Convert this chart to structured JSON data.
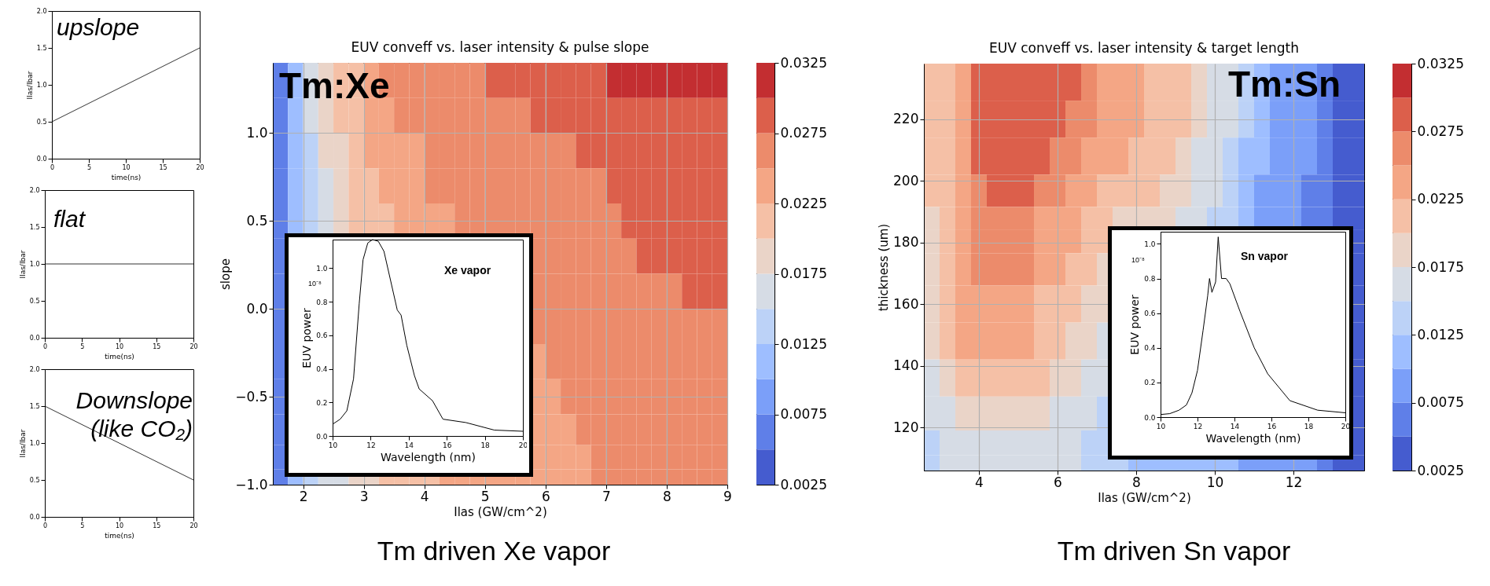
{
  "chart_data": [
    {
      "type": "line",
      "x": [
        0,
        20
      ],
      "series": [
        {
          "color": "#333333",
          "values": [
            0.5,
            1.5
          ]
        }
      ],
      "xlim": [
        0,
        20
      ],
      "ylim": [
        0,
        2
      ],
      "xticks": [
        0,
        5,
        10,
        15,
        20
      ],
      "yticks": [
        {
          "value": 0,
          "label": "0.0"
        },
        {
          "value": 0.5,
          "label": "0.5"
        },
        {
          "value": 1,
          "label": "1.0"
        },
        {
          "value": 1.5,
          "label": "1.5"
        },
        {
          "value": 2,
          "label": "2.0"
        }
      ],
      "xlabel": "time(ns)",
      "ylabel": "Ilas/Ibar",
      "annotations": [
        "upslope"
      ]
    },
    {
      "type": "line",
      "x": [
        0,
        20
      ],
      "series": [
        {
          "color": "#333333",
          "values": [
            1,
            1
          ]
        }
      ],
      "xlim": [
        0,
        20
      ],
      "ylim": [
        0,
        2
      ],
      "xticks": [
        0,
        5,
        10,
        15,
        20
      ],
      "yticks": [
        {
          "value": 0,
          "label": "0.0"
        },
        {
          "value": 0.5,
          "label": "0.5"
        },
        {
          "value": 1,
          "label": "1.0"
        },
        {
          "value": 1.5,
          "label": "1.5"
        },
        {
          "value": 2,
          "label": "2.0"
        }
      ],
      "xlabel": "time(ns)",
      "ylabel": "Ilas/Ibar",
      "annotations": [
        "flat"
      ]
    },
    {
      "type": "line",
      "x": [
        0,
        20
      ],
      "series": [
        {
          "color": "#333333",
          "values": [
            1.5,
            0.5
          ]
        }
      ],
      "xlim": [
        0,
        20
      ],
      "ylim": [
        0,
        2
      ],
      "xticks": [
        0,
        5,
        10,
        15,
        20
      ],
      "yticks": [
        {
          "value": 0,
          "label": "0.0"
        },
        {
          "value": 0.5,
          "label": "0.5"
        },
        {
          "value": 1,
          "label": "1.0"
        },
        {
          "value": 1.5,
          "label": "1.5"
        },
        {
          "value": 2,
          "label": "2.0"
        }
      ],
      "xlabel": "time(ns)",
      "ylabel": "Ilas/Ibar",
      "annotations": [
        "Downslope (like CO₂)"
      ]
    },
    {
      "type": "heatmap",
      "title": "EUV conveff vs. laser intensity & pulse slope",
      "xlabel": "Ilas (GW/cm^2)",
      "ylabel": "slope",
      "x": [
        1.625,
        1.875,
        2.125,
        2.375,
        2.625,
        2.875,
        3.125,
        3.375,
        3.625,
        3.875,
        4.125,
        4.375,
        4.625,
        4.875,
        5.125,
        5.375,
        5.625,
        5.875,
        6.125,
        6.375,
        6.625,
        6.875,
        7.125,
        7.375,
        7.625,
        7.875,
        8.125,
        8.375,
        8.625,
        8.875
      ],
      "y": [
        1.3,
        1.1,
        0.9,
        0.7,
        0.5,
        0.3,
        0.1,
        -0.1,
        -0.3,
        -0.5,
        -0.7,
        -0.85,
        -0.975
      ],
      "cells": [
        [
          0.00625,
          0.01125,
          0.01625,
          0.01875,
          0.02125,
          0.02125,
          0.02375,
          0.02625,
          0.02625,
          0.02625,
          0.02625,
          0.02625,
          0.02625,
          0.02625,
          0.02875,
          0.02875,
          0.02875,
          0.02875,
          0.02875,
          0.02875,
          0.02875,
          0.02875,
          0.03125,
          0.03125,
          0.03125,
          0.03125,
          0.03125,
          0.03125,
          0.03125,
          0.03125
        ],
        [
          0.00625,
          0.01125,
          0.01625,
          0.01875,
          0.02125,
          0.02125,
          0.02375,
          0.02375,
          0.02625,
          0.02625,
          0.02625,
          0.02625,
          0.02625,
          0.02625,
          0.02625,
          0.02625,
          0.02625,
          0.02875,
          0.02875,
          0.02875,
          0.02875,
          0.02875,
          0.02875,
          0.02875,
          0.02875,
          0.02875,
          0.02875,
          0.02875,
          0.02875,
          0.02875
        ],
        [
          0.00625,
          0.01125,
          0.01375,
          0.01875,
          0.01875,
          0.02125,
          0.02375,
          0.02375,
          0.02375,
          0.02375,
          0.02625,
          0.02625,
          0.02625,
          0.02625,
          0.02625,
          0.02625,
          0.02625,
          0.02625,
          0.02625,
          0.02625,
          0.02875,
          0.02875,
          0.02875,
          0.02875,
          0.02875,
          0.02875,
          0.02875,
          0.02875,
          0.02875,
          0.02875
        ],
        [
          0.00625,
          0.01125,
          0.01375,
          0.01625,
          0.01875,
          0.02125,
          0.02125,
          0.02375,
          0.02375,
          0.02375,
          0.02625,
          0.02625,
          0.02625,
          0.02625,
          0.02625,
          0.02625,
          0.02625,
          0.02625,
          0.02625,
          0.02625,
          0.02625,
          0.02625,
          0.02875,
          0.02875,
          0.02875,
          0.02875,
          0.02875,
          0.02875,
          0.02875,
          0.02875
        ],
        [
          0.00625,
          0.01125,
          0.01375,
          0.01625,
          0.01875,
          0.02125,
          0.02125,
          0.02125,
          0.02375,
          0.02375,
          0.02375,
          0.02375,
          0.02625,
          0.02625,
          0.02625,
          0.02625,
          0.02625,
          0.02625,
          0.02625,
          0.02625,
          0.02625,
          0.02625,
          0.02625,
          0.02875,
          0.02875,
          0.02875,
          0.02875,
          0.02875,
          0.02875,
          0.02875
        ],
        [
          0.00625,
          null,
          null,
          null,
          null,
          null,
          null,
          null,
          null,
          null,
          null,
          null,
          null,
          null,
          null,
          null,
          null,
          0.02625,
          0.02625,
          0.02625,
          0.02625,
          0.02625,
          0.02625,
          0.02625,
          0.02875,
          0.02875,
          0.02875,
          0.02875,
          0.02875,
          0.02875
        ],
        [
          0.00625,
          null,
          null,
          null,
          null,
          null,
          null,
          null,
          null,
          null,
          null,
          null,
          null,
          null,
          null,
          null,
          null,
          0.02625,
          0.02625,
          0.02625,
          0.02625,
          0.02625,
          0.02625,
          0.02625,
          0.02625,
          0.02625,
          0.02625,
          0.02875,
          0.02875,
          0.02875
        ],
        [
          0.00625,
          null,
          null,
          null,
          null,
          null,
          null,
          null,
          null,
          null,
          null,
          null,
          null,
          null,
          null,
          null,
          null,
          0.02625,
          0.02625,
          0.02625,
          0.02625,
          0.02625,
          0.02625,
          0.02625,
          0.02625,
          0.02625,
          0.02625,
          0.02625,
          0.02625,
          0.02625
        ],
        [
          0.00625,
          null,
          null,
          null,
          null,
          null,
          null,
          null,
          null,
          null,
          null,
          null,
          null,
          null,
          null,
          null,
          null,
          0.02375,
          0.02625,
          0.02625,
          0.02625,
          0.02625,
          0.02625,
          0.02625,
          0.02625,
          0.02625,
          0.02625,
          0.02625,
          0.02625,
          0.02625
        ],
        [
          0.00625,
          null,
          null,
          null,
          null,
          null,
          null,
          null,
          null,
          null,
          null,
          null,
          null,
          null,
          null,
          null,
          null,
          0.02375,
          0.02375,
          0.02625,
          0.02625,
          0.02625,
          0.02625,
          0.02625,
          0.02625,
          0.02625,
          0.02625,
          0.02625,
          0.02625,
          0.02625
        ],
        [
          0.00625,
          null,
          null,
          null,
          null,
          null,
          null,
          null,
          null,
          null,
          null,
          null,
          null,
          null,
          null,
          null,
          null,
          0.02375,
          0.02375,
          0.02375,
          0.02625,
          0.02625,
          0.02625,
          0.02625,
          0.02625,
          0.02625,
          0.02625,
          0.02625,
          0.02625,
          0.02625
        ],
        [
          0.00625,
          null,
          null,
          null,
          null,
          null,
          null,
          null,
          null,
          null,
          null,
          null,
          null,
          null,
          null,
          null,
          null,
          0.02375,
          0.02375,
          0.02375,
          0.02375,
          0.02625,
          0.02625,
          0.02625,
          0.02625,
          0.02625,
          0.02625,
          0.02625,
          0.02625,
          0.02625
        ],
        [
          0.00625,
          0.01125,
          0.01375,
          0.01625,
          0.01625,
          0.01875,
          0.01875,
          0.02125,
          0.02125,
          0.02125,
          0.02125,
          0.02375,
          0.02375,
          0.02375,
          0.02375,
          0.02375,
          0.02375,
          0.02375,
          0.02375,
          0.02375,
          0.02375,
          0.02625,
          0.02625,
          0.02625,
          0.02625,
          0.02625,
          0.02625,
          0.02625,
          0.02625,
          0.02625
        ]
      ],
      "colors": [
        "#455ccf",
        "#5f7fe8",
        "#7b9ff9",
        "#9ebeff",
        "#bcd2f7",
        "#d6dce5",
        "#ead4c8",
        "#f5c0a6",
        "#f4a685",
        "#ec8b6b",
        "#dc5f4b",
        "#c32e31"
      ],
      "clim": [
        0.0025,
        0.0325
      ],
      "cticks": [
        0.0025,
        0.0075,
        0.0125,
        0.0175,
        0.0225,
        0.0275,
        0.0325
      ],
      "xlim": [
        1.5,
        9
      ],
      "ylim": [
        -1,
        1.4
      ],
      "xticks": [
        2,
        3,
        4,
        5,
        6,
        7,
        8,
        9
      ],
      "yticks": [
        {
          "value": -1,
          "label": "−1.0"
        },
        {
          "value": -0.5,
          "label": "−0.5"
        },
        {
          "value": 0,
          "label": "0.0"
        },
        {
          "value": 0.5,
          "label": "0.5"
        },
        {
          "value": 1,
          "label": "1.0"
        }
      ],
      "grid": true,
      "annotations": [
        "Tm:Xe",
        "Tm driven Xe vapor"
      ]
    },
    {
      "type": "line",
      "x": [
        10,
        10.4,
        10.75,
        11.1,
        11.4,
        11.6,
        11.85,
        12.1,
        12.4,
        12.7,
        13.0,
        13.4,
        13.6,
        13.9,
        14.3,
        14.55,
        15.25,
        15.8,
        17,
        18.5,
        20
      ],
      "series": [
        {
          "color": "#000000",
          "values": [
            0.07,
            0.1,
            0.15,
            0.34,
            0.79,
            1.05,
            1.15,
            1.17,
            1.16,
            1.1,
            0.95,
            0.75,
            0.72,
            0.54,
            0.36,
            0.28,
            0.21,
            0.1,
            0.08,
            0.035,
            0.028
          ]
        }
      ],
      "xlim": [
        10,
        20
      ],
      "ylim": [
        0,
        1.17
      ],
      "xticks": [
        10,
        12,
        14,
        16,
        18,
        20
      ],
      "yticks": [
        {
          "value": 0,
          "label": "0.0"
        },
        {
          "value": 0.2,
          "label": "0.2"
        },
        {
          "value": 0.4,
          "label": "0.4"
        },
        {
          "value": 0.6,
          "label": "0.6"
        },
        {
          "value": 0.8,
          "label": "0.8"
        },
        {
          "value": 1,
          "label": "1.0"
        }
      ],
      "xlabel": "Wavelength (nm)",
      "ylabel": "EUV power",
      "annotations": [
        "Xe vapor",
        "10⁻⁸"
      ]
    },
    {
      "type": "heatmap",
      "title": "EUV conveff vs. laser intensity & target length",
      "xlabel": "Ilas (GW/cm^2)",
      "ylabel": "thickness (um)",
      "x": [
        2.8,
        3.2,
        3.6,
        4.0,
        4.4,
        4.8,
        5.2,
        5.6,
        6.0,
        6.4,
        6.8,
        7.2,
        7.6,
        8.0,
        8.4,
        8.8,
        9.2,
        9.6,
        10.0,
        10.4,
        10.8,
        11.2,
        11.6,
        12.0,
        12.4,
        12.8,
        13.2,
        13.6
      ],
      "y": [
        232,
        220,
        208,
        196,
        187,
        181,
        172,
        160,
        148,
        136,
        124,
        114,
        108
      ],
      "cells": [
        [
          0.02125,
          0.02125,
          0.02375,
          0.02875,
          0.02875,
          0.02875,
          0.02875,
          0.02875,
          0.02875,
          0.02875,
          0.02625,
          0.02375,
          0.02375,
          0.02375,
          0.02125,
          0.02125,
          0.02125,
          0.01875,
          0.01625,
          0.01625,
          0.01375,
          0.01125,
          0.00875,
          0.00875,
          0.00875,
          0.00625,
          0.00375,
          0.00375
        ],
        [
          0.02125,
          0.02125,
          0.02375,
          0.02875,
          0.02875,
          0.02875,
          0.02875,
          0.02875,
          0.02875,
          0.02625,
          0.02625,
          0.02375,
          0.02375,
          0.02375,
          0.02125,
          0.02125,
          0.02125,
          0.01875,
          0.01625,
          0.01625,
          0.01375,
          0.01125,
          0.00875,
          0.00875,
          0.00875,
          0.00625,
          0.00375,
          0.00375
        ],
        [
          0.02125,
          0.02125,
          0.02375,
          0.02875,
          0.02875,
          0.02875,
          0.02875,
          0.02875,
          0.02625,
          0.02625,
          0.02375,
          0.02375,
          0.02375,
          0.02125,
          0.02125,
          0.02125,
          0.01875,
          0.01625,
          0.01625,
          0.01375,
          0.01125,
          0.01125,
          0.00875,
          0.00875,
          0.00875,
          0.00625,
          0.00375,
          0.00375
        ],
        [
          0.02125,
          0.02125,
          0.02375,
          0.02625,
          0.02875,
          0.02875,
          0.02875,
          0.02625,
          0.02625,
          0.02375,
          0.02375,
          0.02125,
          0.02125,
          0.02125,
          0.02125,
          0.01875,
          0.01875,
          0.01625,
          0.01625,
          0.01375,
          0.01125,
          0.00875,
          0.00875,
          0.00875,
          0.00625,
          0.00625,
          0.00375,
          0.00375
        ],
        [
          0.01875,
          0.02125,
          0.02375,
          0.02625,
          0.02625,
          0.02625,
          0.02625,
          0.02375,
          0.02375,
          0.02375,
          0.02125,
          0.02125,
          0.01875,
          0.01875,
          0.01875,
          0.01875,
          0.01625,
          0.01625,
          0.01375,
          0.01375,
          0.01125,
          0.00875,
          0.00875,
          0.00875,
          0.00625,
          0.00625,
          0.00375,
          0.00375
        ],
        [
          0.01875,
          0.02125,
          0.02375,
          0.02625,
          0.02625,
          0.02625,
          0.02625,
          0.02375,
          0.02375,
          0.02375,
          0.02125,
          0.02125,
          null,
          null,
          null,
          null,
          null,
          null,
          null,
          null,
          null,
          null,
          null,
          null,
          null,
          null,
          null,
          0.00375
        ],
        [
          0.01875,
          0.02125,
          0.02375,
          0.02625,
          0.02625,
          0.02625,
          0.02625,
          0.02375,
          0.02375,
          0.02125,
          0.02125,
          0.01875,
          null,
          null,
          null,
          null,
          null,
          null,
          null,
          null,
          null,
          null,
          null,
          null,
          null,
          null,
          null,
          0.00375
        ],
        [
          0.01875,
          0.02125,
          0.02375,
          0.02375,
          0.02375,
          0.02375,
          0.02375,
          0.02125,
          0.02125,
          0.02125,
          0.01875,
          0.01875,
          null,
          null,
          null,
          null,
          null,
          null,
          null,
          null,
          null,
          null,
          null,
          null,
          null,
          null,
          null,
          0.00375
        ],
        [
          0.01875,
          0.02125,
          0.02375,
          0.02375,
          0.02375,
          0.02375,
          0.02375,
          0.02125,
          0.02125,
          0.01875,
          0.01875,
          0.01625,
          null,
          null,
          null,
          null,
          null,
          null,
          null,
          null,
          null,
          null,
          null,
          null,
          null,
          null,
          null,
          0.00375
        ],
        [
          0.01625,
          0.01875,
          0.02125,
          0.02125,
          0.02125,
          0.02125,
          0.02125,
          0.02125,
          0.01875,
          0.01875,
          0.01625,
          0.01625,
          null,
          null,
          null,
          null,
          null,
          null,
          null,
          null,
          null,
          null,
          null,
          null,
          null,
          null,
          null,
          0.00375
        ],
        [
          0.01625,
          0.01625,
          0.01875,
          0.01875,
          0.01875,
          0.01875,
          0.01875,
          0.01875,
          0.01625,
          0.01625,
          0.01625,
          0.01375,
          null,
          null,
          null,
          null,
          null,
          null,
          null,
          null,
          null,
          null,
          null,
          null,
          null,
          null,
          null,
          0.00375
        ],
        [
          0.01375,
          0.01625,
          0.01625,
          0.01625,
          0.01625,
          0.01625,
          0.01625,
          0.01625,
          0.01625,
          0.01625,
          0.01375,
          0.01375,
          null,
          null,
          null,
          null,
          null,
          null,
          null,
          null,
          null,
          null,
          null,
          null,
          null,
          null,
          null,
          0.00375
        ],
        [
          0.01375,
          0.01625,
          0.01625,
          0.01625,
          0.01625,
          0.01625,
          0.01625,
          0.01625,
          0.01625,
          0.01625,
          0.01375,
          0.01375,
          0.01375,
          0.01125,
          0.01125,
          0.01125,
          0.01125,
          0.01125,
          0.01125,
          0.01125,
          0.00875,
          0.00875,
          0.00875,
          0.00875,
          0.00875,
          0.00625,
          0.00375,
          0.00375
        ]
      ],
      "colors": [
        "#455ccf",
        "#5f7fe8",
        "#7b9ff9",
        "#9ebeff",
        "#bcd2f7",
        "#d6dce5",
        "#ead4c8",
        "#f5c0a6",
        "#f4a685",
        "#ec8b6b",
        "#dc5f4b",
        "#c32e31"
      ],
      "clim": [
        0.0025,
        0.0325
      ],
      "cticks": [
        0.0025,
        0.0075,
        0.0125,
        0.0175,
        0.0225,
        0.0275,
        0.0325
      ],
      "xlim": [
        2.6,
        13.8
      ],
      "ylim": [
        106,
        238
      ],
      "xticks": [
        4,
        6,
        8,
        10,
        12
      ],
      "yticks": [
        120,
        140,
        160,
        180,
        200,
        220
      ],
      "grid": true,
      "annotations": [
        "Tm:Sn",
        "Tm driven Sn vapor"
      ]
    },
    {
      "type": "line",
      "x": [
        10,
        10.5,
        11,
        11.4,
        11.7,
        12.0,
        12.3,
        12.55,
        12.65,
        12.78,
        12.98,
        13.12,
        13.3,
        13.55,
        13.75,
        14.3,
        15.07,
        15.8,
        17,
        18.5,
        20
      ],
      "series": [
        {
          "color": "#000000",
          "values": [
            0.015,
            0.02,
            0.04,
            0.07,
            0.14,
            0.27,
            0.5,
            0.7,
            0.8,
            0.72,
            0.78,
            1.04,
            0.8,
            0.8,
            0.77,
            0.61,
            0.4,
            0.25,
            0.095,
            0.04,
            0.025
          ]
        }
      ],
      "xlim": [
        10,
        20
      ],
      "ylim": [
        0,
        1.07
      ],
      "xticks": [
        10,
        12,
        14,
        16,
        18,
        20
      ],
      "yticks": [
        {
          "value": 0,
          "label": "0.0"
        },
        {
          "value": 0.2,
          "label": "0.2"
        },
        {
          "value": 0.4,
          "label": "0.4"
        },
        {
          "value": 0.6,
          "label": "0.6"
        },
        {
          "value": 0.8,
          "label": "0.8"
        },
        {
          "value": 1,
          "label": "1.0"
        }
      ],
      "xlabel": "Wavelength (nm)",
      "ylabel": "EUV power",
      "annotations": [
        "Sn vapor",
        "10⁻⁸"
      ]
    }
  ]
}
